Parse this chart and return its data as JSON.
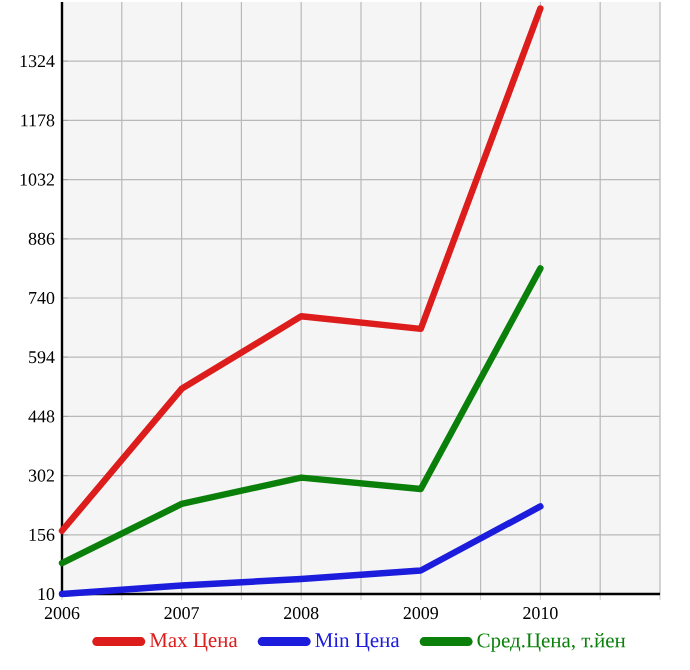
{
  "chart_data": {
    "type": "line",
    "x": [
      2006,
      2007,
      2008,
      2009,
      2010
    ],
    "series": [
      {
        "name": "Max Цена",
        "color": "#dd1c1c",
        "values": [
          166,
          516,
          695,
          664,
          1454
        ]
      },
      {
        "name": "Min Цена",
        "color": "#1c1cdd",
        "values": [
          10,
          31,
          47,
          68,
          226
        ]
      },
      {
        "name": "Сред.Цена, т.йен",
        "color": "#0a800a",
        "values": [
          86,
          232,
          297,
          269,
          813
        ]
      }
    ],
    "xlim": [
      2006,
      2011
    ],
    "xticks": [
      2006,
      {
        "value": 2006.5,
        "label": null
      },
      2007,
      {
        "value": 2007.5,
        "label": null
      },
      2008,
      {
        "value": 2008.5,
        "label": null
      },
      2009,
      {
        "value": 2009.5,
        "label": null
      },
      2010,
      {
        "value": 2010.5,
        "label": null
      },
      {
        "value": 2011,
        "label": null
      }
    ],
    "ylim": [
      10,
      1470
    ],
    "yticks": [
      10,
      156,
      302,
      448,
      594,
      740,
      886,
      1032,
      1178,
      1324
    ],
    "grid": true,
    "legend": "bottom",
    "marker": "none",
    "line_style": "solid"
  }
}
